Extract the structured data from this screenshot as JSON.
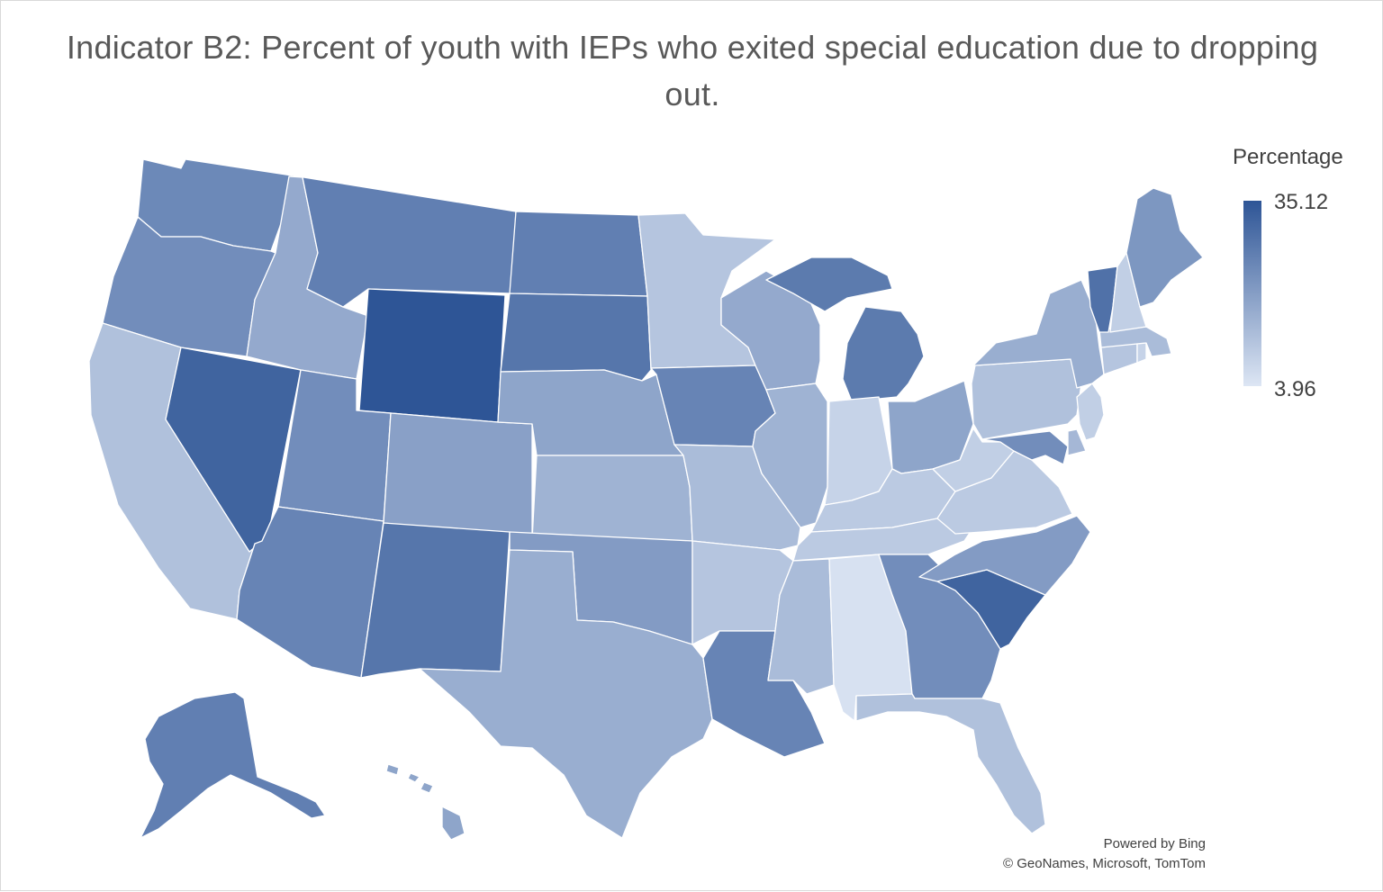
{
  "title": "Indicator B2: Percent of youth with IEPs who exited special education due to dropping out.",
  "legend": {
    "title": "Percentage",
    "max_label": "35.12",
    "min_label": "3.96",
    "max_color": "#2e5596",
    "min_color": "#dde6f4"
  },
  "attribution": {
    "line1": "Powered by Bing",
    "line2": "© GeoNames, Microsoft, TomTom"
  },
  "chart_data": {
    "type": "choropleth",
    "title": "Indicator B2: Percent of youth with IEPs who exited special education due to dropping out.",
    "legend_title": "Percentage",
    "range": [
      3.96,
      35.12
    ],
    "colors": {
      "low": "#dde6f4",
      "high": "#2e5596"
    },
    "states": [
      {
        "id": "WA",
        "name": "Washington",
        "value": 24
      },
      {
        "id": "OR",
        "name": "Oregon",
        "value": 23
      },
      {
        "id": "CA",
        "name": "California",
        "value": 12
      },
      {
        "id": "NV",
        "name": "Nevada",
        "value": 32
      },
      {
        "id": "ID",
        "name": "Idaho",
        "value": 17
      },
      {
        "id": "MT",
        "name": "Montana",
        "value": 26
      },
      {
        "id": "WY",
        "name": "Wyoming",
        "value": 35.12
      },
      {
        "id": "UT",
        "name": "Utah",
        "value": 23
      },
      {
        "id": "AZ",
        "name": "Arizona",
        "value": 25
      },
      {
        "id": "CO",
        "name": "Colorado",
        "value": 19
      },
      {
        "id": "NM",
        "name": "New Mexico",
        "value": 28
      },
      {
        "id": "ND",
        "name": "North Dakota",
        "value": 26
      },
      {
        "id": "SD",
        "name": "South Dakota",
        "value": 28
      },
      {
        "id": "NE",
        "name": "Nebraska",
        "value": 18
      },
      {
        "id": "KS",
        "name": "Kansas",
        "value": 15
      },
      {
        "id": "OK",
        "name": "Oklahoma",
        "value": 20
      },
      {
        "id": "TX",
        "name": "Texas",
        "value": 16
      },
      {
        "id": "MN",
        "name": "Minnesota",
        "value": 11
      },
      {
        "id": "IA",
        "name": "Iowa",
        "value": 25
      },
      {
        "id": "MO",
        "name": "Missouri",
        "value": 13
      },
      {
        "id": "AR",
        "name": "Arkansas",
        "value": 11
      },
      {
        "id": "LA",
        "name": "Louisiana",
        "value": 25
      },
      {
        "id": "WI",
        "name": "Wisconsin",
        "value": 17
      },
      {
        "id": "IL",
        "name": "Illinois",
        "value": 15
      },
      {
        "id": "MI",
        "name": "Michigan",
        "value": 27
      },
      {
        "id": "IN",
        "name": "Indiana",
        "value": 8
      },
      {
        "id": "OH",
        "name": "Ohio",
        "value": 18
      },
      {
        "id": "KY",
        "name": "Kentucky",
        "value": 10
      },
      {
        "id": "TN",
        "name": "Tennessee",
        "value": 10
      },
      {
        "id": "MS",
        "name": "Mississippi",
        "value": 13
      },
      {
        "id": "AL",
        "name": "Alabama",
        "value": 5
      },
      {
        "id": "GA",
        "name": "Georgia",
        "value": 23
      },
      {
        "id": "FL",
        "name": "Florida",
        "value": 12
      },
      {
        "id": "SC",
        "name": "South Carolina",
        "value": 32
      },
      {
        "id": "NC",
        "name": "North Carolina",
        "value": 20
      },
      {
        "id": "VA",
        "name": "Virginia",
        "value": 10
      },
      {
        "id": "WV",
        "name": "West Virginia",
        "value": 9
      },
      {
        "id": "MD",
        "name": "Maryland",
        "value": 23
      },
      {
        "id": "DE",
        "name": "Delaware",
        "value": 14
      },
      {
        "id": "PA",
        "name": "Pennsylvania",
        "value": 12
      },
      {
        "id": "NJ",
        "name": "New Jersey",
        "value": 9
      },
      {
        "id": "NY",
        "name": "New York",
        "value": 16
      },
      {
        "id": "CT",
        "name": "Connecticut",
        "value": 11
      },
      {
        "id": "RI",
        "name": "Rhode Island",
        "value": 8
      },
      {
        "id": "MA",
        "name": "Massachusetts",
        "value": 13
      },
      {
        "id": "VT",
        "name": "Vermont",
        "value": 29
      },
      {
        "id": "NH",
        "name": "New Hampshire",
        "value": 9
      },
      {
        "id": "ME",
        "name": "Maine",
        "value": 21
      },
      {
        "id": "AK",
        "name": "Alaska",
        "value": 26
      },
      {
        "id": "HI",
        "name": "Hawaii",
        "value": 18
      }
    ]
  }
}
